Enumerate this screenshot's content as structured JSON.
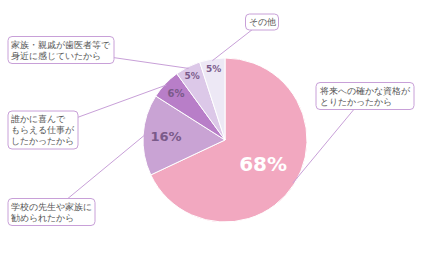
{
  "chart_data": {
    "type": "pie",
    "categories": [
      "将来への確かな資格が\nとりたかったから",
      "学校の先生や家族に\n勧められたから",
      "誰かに喜んで\nもらえる仕事が\nしたかったから",
      "家族・親戚が歯医者等で\n身近に感じていたから",
      "その他"
    ],
    "values": [
      68,
      16,
      6,
      5,
      5
    ],
    "value_labels": [
      "68%",
      "16%",
      "6%",
      "5%",
      "5%"
    ],
    "colors": [
      "#f2a8c0",
      "#c9a3d4",
      "#b87ec8",
      "#dcc8e8",
      "#ede8f5"
    ],
    "data_labels": true
  }
}
